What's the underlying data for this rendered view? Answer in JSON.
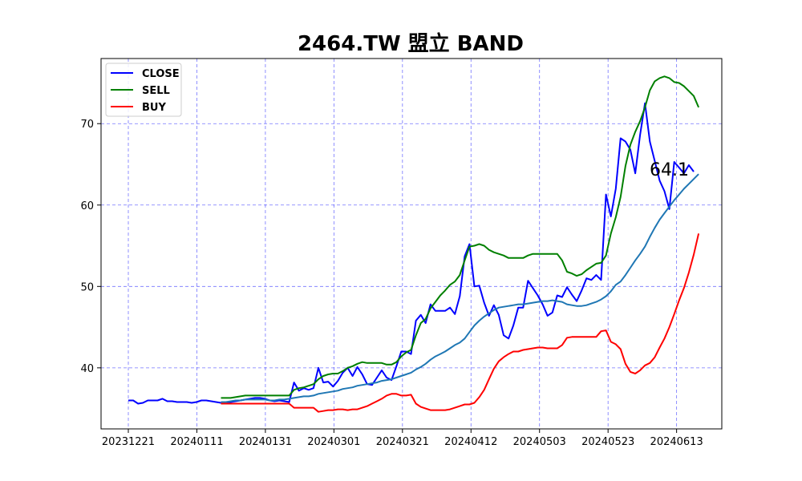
{
  "chart_data": {
    "type": "line",
    "title": "2464.TW 盟立 BAND",
    "xlabel": "",
    "ylabel": "",
    "x_ticks": [
      "20231221",
      "20240111",
      "20240131",
      "20240301",
      "20240321",
      "20240412",
      "20240503",
      "20240523",
      "20240613"
    ],
    "y_ticks": [
      40,
      50,
      60,
      70
    ],
    "ylim": [
      32.5,
      78
    ],
    "grid": true,
    "legend_position": "top-left",
    "annotation": "64.1",
    "series": [
      {
        "name": "CLOSE",
        "color": "#0000ff",
        "values": [
          36.0,
          36.0,
          35.6,
          35.7,
          36.0,
          36.0,
          36.0,
          36.2,
          35.9,
          35.9,
          35.8,
          35.8,
          35.8,
          35.7,
          35.8,
          36.0,
          36.0,
          35.9,
          35.8,
          35.7,
          35.6,
          35.8,
          35.9,
          36.0,
          36.1,
          36.2,
          36.3,
          36.3,
          36.2,
          36.0,
          35.9,
          36.0,
          35.9,
          35.8,
          38.2,
          37.2,
          37.5,
          37.3,
          37.5,
          40.0,
          38.2,
          38.3,
          37.7,
          38.4,
          39.4,
          40.0,
          39.0,
          40.1,
          39.2,
          38.0,
          37.9,
          38.8,
          39.7,
          38.8,
          38.5,
          40.2,
          42.0,
          42.0,
          41.7,
          45.8,
          46.5,
          45.5,
          47.8,
          47.0,
          47.0,
          47.0,
          47.4,
          46.6,
          48.8,
          53.7,
          55.2,
          50.0,
          50.1,
          48.0,
          46.4,
          47.7,
          46.5,
          44.0,
          43.6,
          45.2,
          47.4,
          47.4,
          50.7,
          49.8,
          48.9,
          47.8,
          46.4,
          46.8,
          48.9,
          48.7,
          49.9,
          49.0,
          48.2,
          49.5,
          51.0,
          50.8,
          51.4,
          50.8,
          61.3,
          58.6,
          62.0,
          68.2,
          67.8,
          66.8,
          63.9,
          68.6,
          72.5,
          67.8,
          65.4,
          63.0,
          61.7,
          59.5,
          65.3,
          64.6,
          63.9,
          64.9,
          64.1
        ]
      },
      {
        "name": "SELL",
        "color": "#008000",
        "values": [
          null,
          null,
          null,
          null,
          null,
          null,
          null,
          null,
          null,
          null,
          null,
          null,
          null,
          null,
          null,
          null,
          null,
          null,
          null,
          36.3,
          36.3,
          36.3,
          36.4,
          36.5,
          36.6,
          36.6,
          36.6,
          36.6,
          36.6,
          36.6,
          36.6,
          36.6,
          36.6,
          36.6,
          37.3,
          37.5,
          37.6,
          37.8,
          38.0,
          38.6,
          39.0,
          39.2,
          39.3,
          39.3,
          39.6,
          40.0,
          40.2,
          40.5,
          40.7,
          40.6,
          40.6,
          40.6,
          40.6,
          40.4,
          40.4,
          40.7,
          41.4,
          41.9,
          42.2,
          44.0,
          45.5,
          46.0,
          47.3,
          48.1,
          48.9,
          49.5,
          50.2,
          50.6,
          51.4,
          53.2,
          54.9,
          55.0,
          55.2,
          55.0,
          54.5,
          54.2,
          54.0,
          53.8,
          53.5,
          53.5,
          53.5,
          53.5,
          53.8,
          54.0,
          54.0,
          54.0,
          54.0,
          54.0,
          54.0,
          53.2,
          51.8,
          51.6,
          51.3,
          51.5,
          52.0,
          52.4,
          52.8,
          52.9,
          53.8,
          56.5,
          58.5,
          61.0,
          64.8,
          67.4,
          69.0,
          70.3,
          72.0,
          74.1,
          75.2,
          75.6,
          75.8,
          75.6,
          75.1,
          75.0,
          74.6,
          74.0,
          73.4,
          72.0
        ]
      },
      {
        "name": "",
        "color": "#1f77b4",
        "values": [
          null,
          null,
          null,
          null,
          null,
          null,
          null,
          null,
          null,
          null,
          null,
          null,
          null,
          null,
          null,
          null,
          null,
          null,
          null,
          35.8,
          35.8,
          35.9,
          36.0,
          36.0,
          36.1,
          36.1,
          36.1,
          36.1,
          36.1,
          36.0,
          36.0,
          36.1,
          36.1,
          36.2,
          36.3,
          36.4,
          36.5,
          36.5,
          36.6,
          36.8,
          36.9,
          37.0,
          37.1,
          37.2,
          37.4,
          37.5,
          37.6,
          37.8,
          37.9,
          38.0,
          38.1,
          38.2,
          38.4,
          38.5,
          38.6,
          38.8,
          39.0,
          39.2,
          39.4,
          39.8,
          40.1,
          40.5,
          41.0,
          41.4,
          41.7,
          42.0,
          42.4,
          42.8,
          43.1,
          43.6,
          44.4,
          45.2,
          45.8,
          46.3,
          46.7,
          47.1,
          47.4,
          47.5,
          47.6,
          47.7,
          47.8,
          47.8,
          47.9,
          48.0,
          48.1,
          48.2,
          48.2,
          48.3,
          48.2,
          48.1,
          47.8,
          47.7,
          47.6,
          47.6,
          47.7,
          47.9,
          48.1,
          48.4,
          48.8,
          49.4,
          50.2,
          50.6,
          51.4,
          52.3,
          53.2,
          54.0,
          54.9,
          56.1,
          57.2,
          58.2,
          59.0,
          59.8,
          60.6,
          61.3,
          62.0,
          62.6,
          63.2,
          63.8
        ]
      },
      {
        "name": "BUY",
        "color": "#ff0000",
        "values": [
          null,
          null,
          null,
          null,
          null,
          null,
          null,
          null,
          null,
          null,
          null,
          null,
          null,
          null,
          null,
          null,
          null,
          null,
          null,
          35.6,
          35.6,
          35.6,
          35.6,
          35.6,
          35.6,
          35.6,
          35.6,
          35.6,
          35.6,
          35.6,
          35.6,
          35.6,
          35.6,
          35.6,
          35.1,
          35.1,
          35.1,
          35.1,
          35.1,
          34.6,
          34.7,
          34.8,
          34.8,
          34.9,
          34.9,
          34.8,
          34.9,
          34.9,
          35.1,
          35.3,
          35.6,
          35.9,
          36.2,
          36.6,
          36.8,
          36.8,
          36.6,
          36.6,
          36.7,
          35.6,
          35.2,
          35.0,
          34.8,
          34.8,
          34.8,
          34.8,
          34.9,
          35.1,
          35.3,
          35.5,
          35.5,
          35.7,
          36.4,
          37.3,
          38.6,
          39.9,
          40.8,
          41.3,
          41.7,
          42.0,
          42.0,
          42.2,
          42.3,
          42.4,
          42.5,
          42.5,
          42.4,
          42.4,
          42.4,
          42.8,
          43.7,
          43.8,
          43.8,
          43.8,
          43.8,
          43.8,
          43.8,
          44.5,
          44.6,
          43.2,
          42.9,
          42.3,
          40.5,
          39.5,
          39.3,
          39.7,
          40.3,
          40.6,
          41.3,
          42.5,
          43.6,
          45.0,
          46.6,
          48.3,
          49.8,
          51.7,
          53.9,
          56.5
        ]
      }
    ]
  }
}
